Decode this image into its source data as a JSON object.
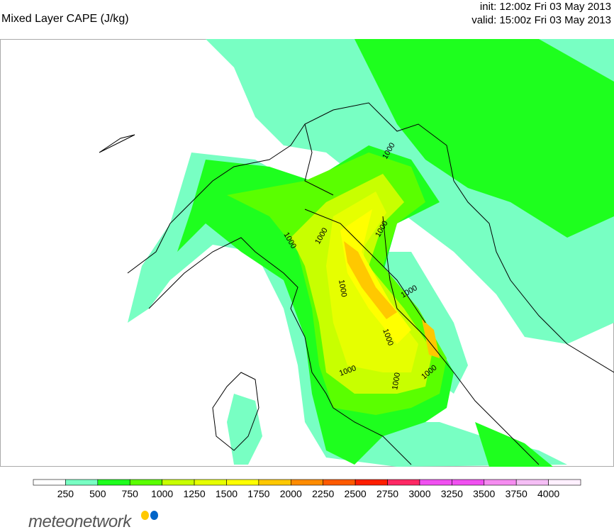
{
  "header": {
    "title": "Mixed Layer CAPE (J/kg)",
    "init": "init: 12:00z Fri 03 May 2013",
    "valid": "valid: 15:00z Fri 03 May 2013"
  },
  "map": {
    "region": "Northern and central Italy, Alps, Adriatic",
    "contour_labels": [
      "1000",
      "1000",
      "1000",
      "1000",
      "1000",
      "1000",
      "1000",
      "1000",
      "1000",
      "1000"
    ],
    "land_border_color": "#000000"
  },
  "colorbar": {
    "ticks": [
      "250",
      "500",
      "750",
      "1000",
      "1250",
      "1500",
      "1750",
      "2000",
      "2250",
      "2500",
      "2750",
      "3000",
      "3250",
      "3500",
      "3750",
      "4000"
    ],
    "colors": [
      "#ffffff",
      "#78ffc3",
      "#1eff1e",
      "#5aff00",
      "#c8ff00",
      "#e6ff00",
      "#ffff00",
      "#ffc800",
      "#ff8c00",
      "#ff5a00",
      "#ff1e00",
      "#ff2864",
      "#f050f0",
      "#f050f0",
      "#f58cf0",
      "#f5bef5",
      "#fff0ff"
    ]
  },
  "logo": {
    "text": "meteonetwork",
    "dot_colors": [
      "#ffc800",
      "#0064c8"
    ]
  }
}
